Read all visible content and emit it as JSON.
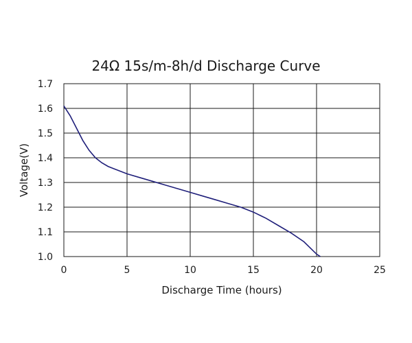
{
  "chart_data": {
    "type": "line",
    "title": "24Ω 15s/m-8h/d Discharge Curve",
    "xlabel": "Discharge Time (hours)",
    "ylabel": "Voltage(V)",
    "xlim": [
      0,
      25
    ],
    "ylim": [
      1.0,
      1.7
    ],
    "x_ticks": [
      "0",
      "5",
      "10",
      "15",
      "20",
      "25"
    ],
    "y_ticks": [
      "1.0",
      "1.1",
      "1.2",
      "1.3",
      "1.4",
      "1.5",
      "1.6",
      "1.7"
    ],
    "grid": true,
    "legend": "none",
    "series": [
      {
        "color": "#1f1f7a",
        "x": [
          0,
          0.5,
          1,
          1.5,
          2,
          2.5,
          3,
          3.5,
          4,
          5,
          6,
          7,
          8,
          9,
          10,
          11,
          12,
          13,
          14,
          15,
          16,
          17,
          18,
          19,
          20,
          20.3
        ],
        "y": [
          1.61,
          1.57,
          1.52,
          1.47,
          1.43,
          1.4,
          1.38,
          1.365,
          1.355,
          1.335,
          1.32,
          1.305,
          1.29,
          1.275,
          1.26,
          1.245,
          1.23,
          1.215,
          1.2,
          1.18,
          1.155,
          1.125,
          1.095,
          1.06,
          1.01,
          1.0
        ]
      }
    ]
  }
}
